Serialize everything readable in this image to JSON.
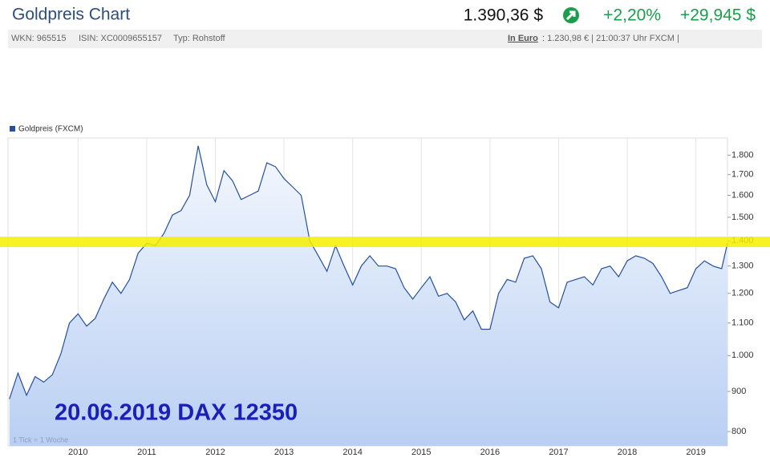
{
  "header": {
    "title": "Goldpreis Chart",
    "price": "1.390,36 $",
    "change_pct": "+2,20%",
    "change_abs": "+29,945 $",
    "wkn": "WKN: 965515",
    "isin": "ISIN: XC0009655157",
    "typ": "Typ: Rohstoff",
    "euro_label": "In Euro",
    "euro_info": ": 1.230,98 € | 21:00:37 Uhr FXCM |"
  },
  "chart_data": {
    "type": "line",
    "log_scale": true,
    "grid": true,
    "annotations": [
      "20.06.2019 DAX 12350",
      "1 Tick = 1 Woche"
    ],
    "x": [
      2009,
      2009.125,
      2009.25,
      2009.375,
      2009.5,
      2009.625,
      2009.75,
      2009.875,
      2010,
      2010.125,
      2010.25,
      2010.375,
      2010.5,
      2010.625,
      2010.75,
      2010.875,
      2011,
      2011.125,
      2011.25,
      2011.375,
      2011.5,
      2011.625,
      2011.75,
      2011.875,
      2012,
      2012.125,
      2012.25,
      2012.375,
      2012.5,
      2012.625,
      2012.75,
      2012.875,
      2013,
      2013.125,
      2013.25,
      2013.375,
      2013.5,
      2013.625,
      2013.75,
      2013.875,
      2014,
      2014.125,
      2014.25,
      2014.375,
      2014.5,
      2014.625,
      2014.75,
      2014.875,
      2015,
      2015.125,
      2015.25,
      2015.375,
      2015.5,
      2015.625,
      2015.75,
      2015.875,
      2016,
      2016.125,
      2016.25,
      2016.375,
      2016.5,
      2016.625,
      2016.75,
      2016.875,
      2017,
      2017.125,
      2017.25,
      2017.375,
      2017.5,
      2017.625,
      2017.75,
      2017.875,
      2018,
      2018.125,
      2018.25,
      2018.375,
      2018.5,
      2018.625,
      2018.75,
      2018.875,
      2019,
      2019.125,
      2019.25,
      2019.375,
      2019.46
    ],
    "series": [
      {
        "name": "Goldpreis (FXCM)",
        "color": "#24509e",
        "values": [
          880,
          950,
          890,
          940,
          925,
          945,
          1005,
          1100,
          1130,
          1090,
          1115,
          1180,
          1240,
          1200,
          1250,
          1350,
          1390,
          1380,
          1430,
          1510,
          1530,
          1600,
          1850,
          1650,
          1570,
          1720,
          1670,
          1580,
          1600,
          1620,
          1760,
          1740,
          1680,
          1640,
          1600,
          1400,
          1340,
          1280,
          1380,
          1300,
          1230,
          1300,
          1340,
          1300,
          1300,
          1290,
          1220,
          1180,
          1220,
          1260,
          1190,
          1200,
          1170,
          1110,
          1140,
          1080,
          1080,
          1200,
          1250,
          1240,
          1330,
          1340,
          1290,
          1170,
          1150,
          1240,
          1250,
          1260,
          1230,
          1290,
          1300,
          1260,
          1320,
          1340,
          1330,
          1310,
          1260,
          1200,
          1210,
          1220,
          1290,
          1320,
          1300,
          1290,
          1390
        ]
      }
    ],
    "xlim": [
      2008.98,
      2019.46
    ],
    "xticks": [
      2010,
      2011,
      2012,
      2013,
      2014,
      2015,
      2016,
      2017,
      2018,
      2019
    ],
    "ylim": [
      767,
      1893
    ],
    "yticks": [
      800,
      900,
      {
        "value": 1000,
        "label": "1.000"
      },
      {
        "value": 1100,
        "label": "1.100"
      },
      {
        "value": 1200,
        "label": "1.200"
      },
      {
        "value": 1300,
        "label": "1.300"
      },
      {
        "value": 1400,
        "label": "1.400"
      },
      {
        "value": 1500,
        "label": "1.500"
      },
      {
        "value": 1600,
        "label": "1.600"
      },
      {
        "value": 1700,
        "label": "1.700"
      },
      {
        "value": 1800,
        "label": "1.800"
      }
    ]
  }
}
